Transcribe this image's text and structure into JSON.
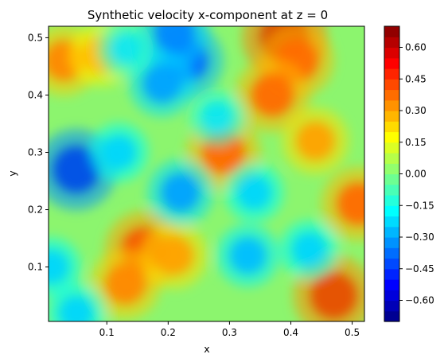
{
  "chart_data": {
    "type": "heatmap",
    "title": "Synthetic velocity x-component at z = 0",
    "xlabel": "x",
    "ylabel": "y",
    "xlim": [
      0.005,
      0.52
    ],
    "ylim": [
      0.005,
      0.52
    ],
    "xticks": [
      0.1,
      0.2,
      0.3,
      0.4,
      0.5
    ],
    "xtick_labels": [
      "0.1",
      "0.2",
      "0.3",
      "0.4",
      "0.5"
    ],
    "yticks": [
      0.1,
      0.2,
      0.3,
      0.4,
      0.5
    ],
    "ytick_labels": [
      "0.1",
      "0.2",
      "0.3",
      "0.4",
      "0.5"
    ],
    "colormap": "jet",
    "colorbar": {
      "vmin": -0.7,
      "vmax": 0.7,
      "ticks": [
        0.6,
        0.45,
        0.3,
        0.15,
        0.0,
        -0.15,
        -0.3,
        -0.45,
        -0.6
      ],
      "tick_labels": [
        "0.60",
        "0.45",
        "0.30",
        "0.15",
        "0.00",
        "−0.15",
        "−0.30",
        "−0.45",
        "−0.60"
      ]
    },
    "field_features": [
      {
        "x": 0.47,
        "y": 0.05,
        "value": 0.6
      },
      {
        "x": 0.39,
        "y": 0.5,
        "value": 0.65
      },
      {
        "x": 0.41,
        "y": 0.46,
        "value": 0.5
      },
      {
        "x": 0.37,
        "y": 0.4,
        "value": 0.5
      },
      {
        "x": 0.16,
        "y": 0.13,
        "value": 0.55
      },
      {
        "x": 0.29,
        "y": 0.3,
        "value": 0.5
      },
      {
        "x": 0.51,
        "y": 0.21,
        "value": 0.5
      },
      {
        "x": 0.03,
        "y": 0.46,
        "value": 0.45
      },
      {
        "x": 0.13,
        "y": 0.07,
        "value": 0.45
      },
      {
        "x": 0.44,
        "y": 0.32,
        "value": 0.4
      },
      {
        "x": 0.21,
        "y": 0.12,
        "value": 0.4
      },
      {
        "x": 0.09,
        "y": 0.47,
        "value": 0.35
      },
      {
        "x": 0.05,
        "y": 0.27,
        "value": -0.6
      },
      {
        "x": 0.23,
        "y": 0.46,
        "value": -0.5
      },
      {
        "x": 0.19,
        "y": 0.42,
        "value": -0.4
      },
      {
        "x": 0.21,
        "y": 0.51,
        "value": -0.45
      },
      {
        "x": 0.22,
        "y": 0.23,
        "value": -0.4
      },
      {
        "x": 0.33,
        "y": 0.12,
        "value": -0.35
      },
      {
        "x": 0.43,
        "y": 0.13,
        "value": -0.3
      },
      {
        "x": 0.12,
        "y": 0.3,
        "value": -0.3
      },
      {
        "x": 0.34,
        "y": 0.23,
        "value": -0.3
      },
      {
        "x": 0.01,
        "y": 0.1,
        "value": -0.3
      },
      {
        "x": 0.13,
        "y": 0.48,
        "value": -0.25
      },
      {
        "x": 0.28,
        "y": 0.36,
        "value": -0.25
      },
      {
        "x": 0.05,
        "y": 0.02,
        "value": -0.3
      }
    ]
  }
}
